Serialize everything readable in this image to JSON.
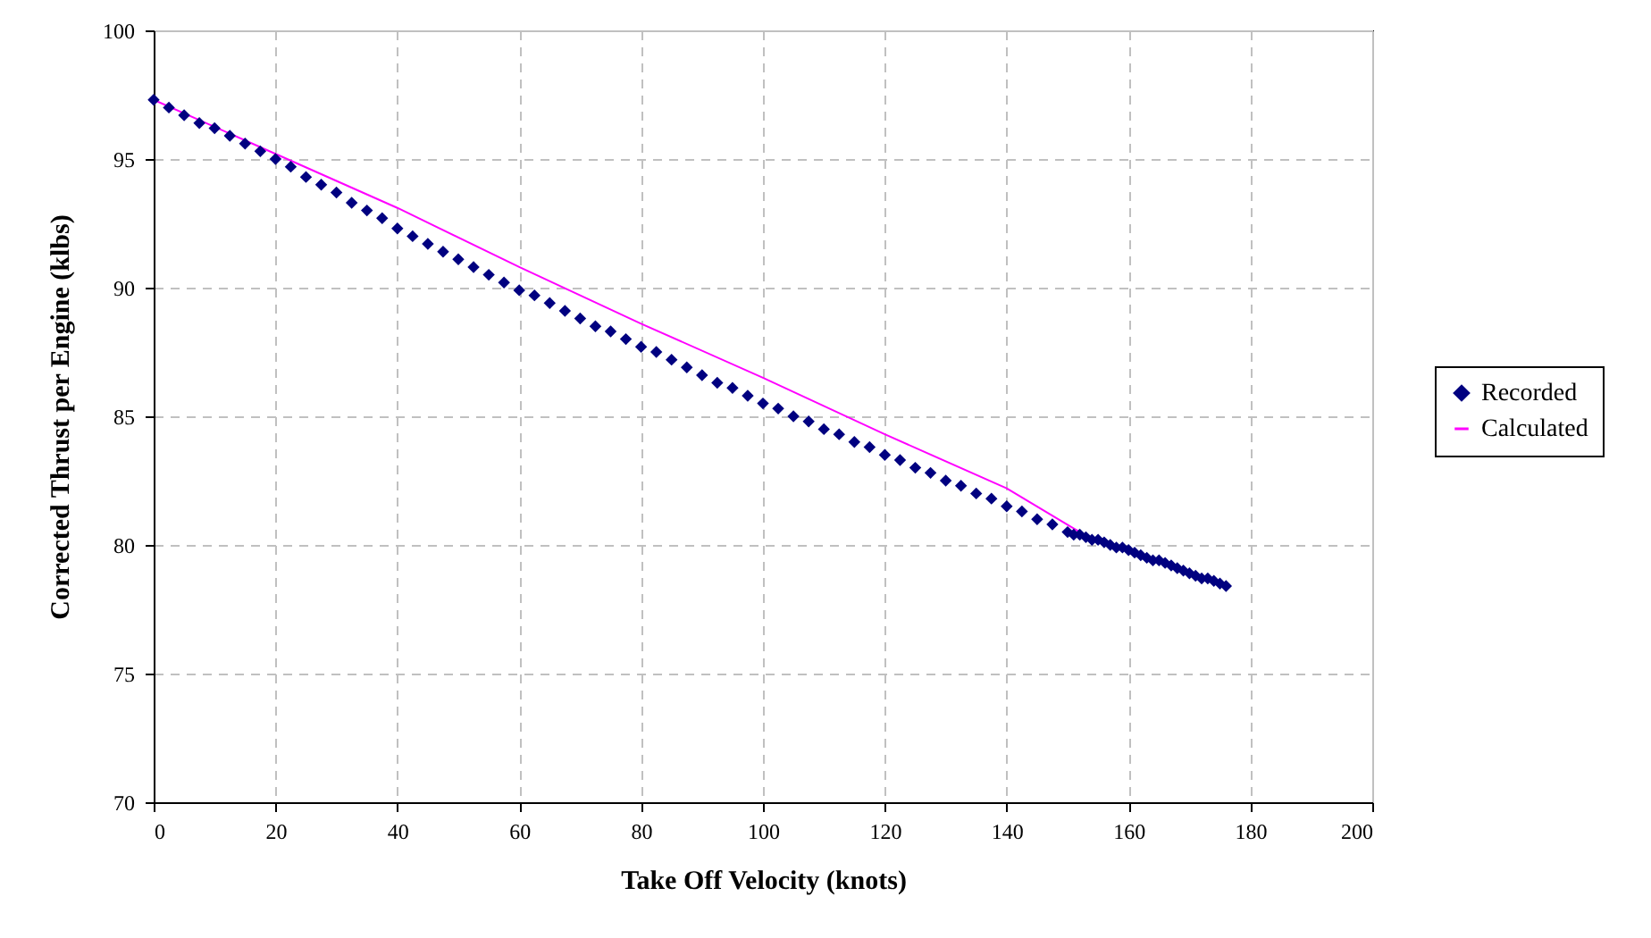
{
  "chart_data": {
    "type": "scatter",
    "xlabel": "Take Off Velocity (knots)",
    "ylabel": "Corrected Thrust per Engine (klbs)",
    "xlim": [
      0,
      200
    ],
    "xticks": [
      0,
      20,
      40,
      60,
      80,
      100,
      120,
      140,
      160,
      180,
      200
    ],
    "ylim": [
      70,
      100
    ],
    "yticks": [
      70,
      75,
      80,
      85,
      90,
      95,
      100
    ],
    "grid": true,
    "legend": "right",
    "series": [
      {
        "name": "Recorded",
        "marker": "diamond",
        "color": "#000080",
        "x": [
          0,
          2.5,
          5,
          7.5,
          10,
          12.5,
          15,
          17.5,
          20,
          22.5,
          25,
          27.5,
          30,
          32.5,
          35,
          37.5,
          40,
          42.5,
          45,
          47.5,
          50,
          52.5,
          55,
          57.5,
          60,
          62.5,
          65,
          67.5,
          70,
          72.5,
          75,
          77.5,
          80,
          82.5,
          85,
          87.5,
          90,
          92.5,
          95,
          97.5,
          100,
          102.5,
          105,
          107.5,
          110,
          112.5,
          115,
          117.5,
          120,
          122.5,
          125,
          127.5,
          130,
          132.5,
          135,
          137.5,
          140,
          142.5,
          145,
          147.5,
          150,
          151,
          152,
          153,
          154,
          155,
          156,
          157,
          158,
          159,
          160,
          161,
          162,
          163,
          164,
          165,
          166,
          167,
          168,
          169,
          170,
          171,
          172,
          173,
          174,
          175,
          176
        ],
        "values": [
          97.3,
          97.0,
          96.7,
          96.4,
          96.2,
          95.9,
          95.6,
          95.3,
          95.0,
          94.7,
          94.3,
          94.0,
          93.7,
          93.3,
          93.0,
          92.7,
          92.3,
          92.0,
          91.7,
          91.4,
          91.1,
          90.8,
          90.5,
          90.2,
          89.9,
          89.7,
          89.4,
          89.1,
          88.8,
          88.5,
          88.3,
          88.0,
          87.7,
          87.5,
          87.2,
          86.9,
          86.6,
          86.3,
          86.1,
          85.8,
          85.5,
          85.3,
          85.0,
          84.8,
          84.5,
          84.3,
          84.0,
          83.8,
          83.5,
          83.3,
          83.0,
          82.8,
          82.5,
          82.3,
          82.0,
          81.8,
          81.5,
          81.3,
          81.0,
          80.8,
          80.5,
          80.4,
          80.4,
          80.3,
          80.2,
          80.2,
          80.1,
          80.0,
          79.9,
          79.9,
          79.8,
          79.7,
          79.6,
          79.5,
          79.4,
          79.4,
          79.3,
          79.2,
          79.1,
          79.0,
          78.9,
          78.8,
          78.7,
          78.7,
          78.6,
          78.5,
          78.4
        ]
      },
      {
        "name": "Calculated",
        "type": "line",
        "marker": "none",
        "color": "#ff00ff",
        "x": [
          0,
          20,
          40,
          60,
          80,
          100,
          120,
          140,
          152
        ],
        "values": [
          97.3,
          95.2,
          93.1,
          90.8,
          88.6,
          86.5,
          84.3,
          82.2,
          80.5
        ]
      }
    ]
  }
}
